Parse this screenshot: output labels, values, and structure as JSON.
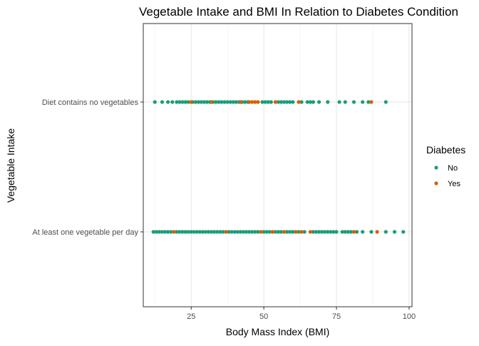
{
  "chart_data": {
    "type": "scatter",
    "title": "Vegetable Intake and BMI In Relation to Diabetes Condition",
    "xlabel": "Body Mass Index (BMI)",
    "ylabel": "Vegetable Intake",
    "xlim": [
      8.5,
      101
    ],
    "xticks": [
      25,
      50,
      75,
      100
    ],
    "grid": true,
    "categories": [
      "At least one vegetable per day",
      "Diet contains no vegetables"
    ],
    "legend": {
      "title": "Diabetes",
      "position": "right",
      "entries": [
        {
          "label": "No",
          "color": "#1b9e77"
        },
        {
          "label": "Yes",
          "color": "#d95f02"
        }
      ]
    },
    "series": [
      {
        "name": "No",
        "color": "#1b9e77",
        "points": [
          {
            "y": "Diet contains no vegetables",
            "x": [
              12.5,
              15,
              17,
              18.5,
              20,
              21,
              22,
              23,
              24,
              25.5,
              26.5,
              27.5,
              28.5,
              29.5,
              30.5,
              31.5,
              32.5,
              33.5,
              34.5,
              35.5,
              36.5,
              37.5,
              38.5,
              39.5,
              40.5,
              41.5,
              42.5,
              43.5,
              44.5,
              49.5,
              50.5,
              51.5,
              52.5,
              55,
              56,
              57,
              58,
              59,
              60,
              63,
              65,
              66,
              67,
              69,
              72,
              76,
              78,
              81,
              84,
              86,
              92
            ]
          },
          {
            "y": "At least one vegetable per day",
            "x": [
              12,
              13,
              14,
              15,
              16,
              17,
              18,
              20,
              21,
              22,
              23,
              24,
              25,
              26,
              27,
              28,
              29,
              30,
              31,
              32,
              33,
              34,
              35,
              36,
              38,
              39,
              40,
              41,
              42,
              43,
              44,
              45,
              46,
              47,
              48,
              50,
              51,
              52,
              54,
              55,
              56,
              58,
              59,
              60,
              62,
              64,
              67,
              68,
              69,
              70,
              71,
              72,
              73,
              74,
              75,
              77,
              78,
              79,
              80,
              82,
              84,
              87,
              92,
              95,
              98
            ]
          }
        ]
      },
      {
        "name": "Yes",
        "color": "#d95f02",
        "points": [
          {
            "y": "Diet contains no vegetables",
            "x": [
              25,
              32,
              42,
              45,
              46,
              47,
              48,
              54,
              62,
              87
            ]
          },
          {
            "y": "At least one vegetable per day",
            "x": [
              19,
              37,
              49,
              53,
              57,
              61,
              63,
              66,
              81,
              89
            ]
          }
        ]
      }
    ]
  }
}
